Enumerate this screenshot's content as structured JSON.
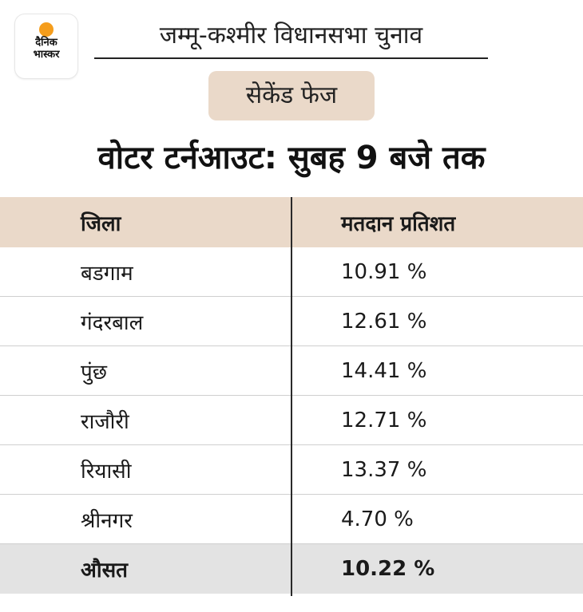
{
  "logo": {
    "line1": "दैनिक",
    "line2": "भास्कर",
    "sun_color": "#f59d1c"
  },
  "title": "जम्मू-कश्मीर विधानसभा चुनाव",
  "phase_badge": "सेकेंड फेज",
  "heading": "वोटर टर्नआउट: सुबह 9 बजे तक",
  "table": {
    "columns": [
      "जिला",
      "मतदान प्रतिशत"
    ],
    "rows": [
      {
        "district": "बडगाम",
        "percent": "10.91 %"
      },
      {
        "district": "गंदरबाल",
        "percent": "12.61 %"
      },
      {
        "district": "पुंछ",
        "percent": "14.41 %"
      },
      {
        "district": "राजौरी",
        "percent": "12.71 %"
      },
      {
        "district": "रियासी",
        "percent": "13.37 %"
      },
      {
        "district": "श्रीनगर",
        "percent": "4.70 %"
      }
    ],
    "average": {
      "label": "औसत",
      "percent": "10.22 %"
    }
  },
  "colors": {
    "header_bg": "#ead9c9",
    "average_bg": "#e3e3e3"
  }
}
